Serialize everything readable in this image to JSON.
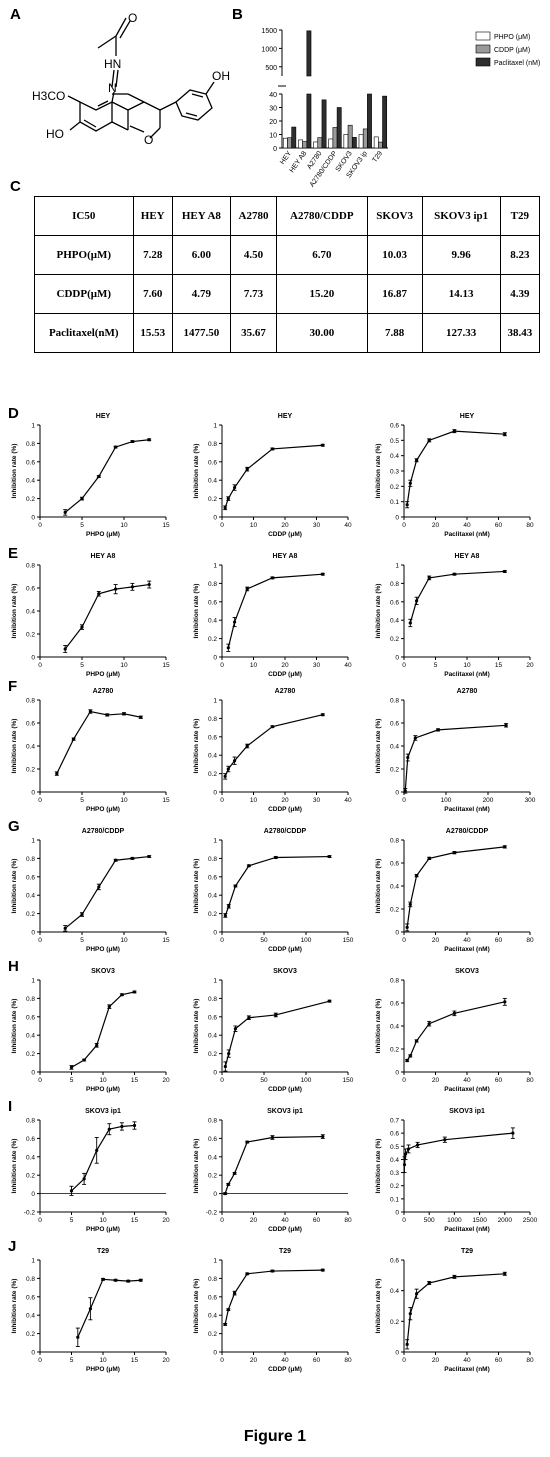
{
  "panel_labels": [
    "A",
    "B",
    "C",
    "D",
    "E",
    "F",
    "G",
    "H",
    "I",
    "J"
  ],
  "figure_title": "Figure 1",
  "structure": {
    "labels": {
      "carbonyl_o": "O",
      "hydrazone_nh": "HN",
      "hydrazone_n": "N",
      "phenol_oh": "OH",
      "methoxy": "H3CO",
      "hydroxy": "HO",
      "ring_o": "O"
    }
  },
  "table": {
    "headers": [
      "IC50",
      "HEY",
      "HEY A8",
      "A2780",
      "A2780/CDDP",
      "SKOV3",
      "SKOV3 ip1",
      "T29"
    ],
    "rows": [
      [
        "PHPO(μM)",
        "7.28",
        "6.00",
        "4.50",
        "6.70",
        "10.03",
        "9.96",
        "8.23"
      ],
      [
        "CDDP(μM)",
        "7.60",
        "4.79",
        "7.73",
        "15.20",
        "16.87",
        "14.13",
        "4.39"
      ],
      [
        "Paclitaxel(nM)",
        "15.53",
        "1477.50",
        "35.67",
        "30.00",
        "7.88",
        "127.33",
        "38.43"
      ]
    ]
  },
  "colors": {
    "phpo": "#ffffff",
    "cddp": "#9a9a9a",
    "paclitaxel": "#2e2e2e",
    "line": "#000000"
  },
  "chart_data": [
    {
      "type": "bar",
      "panel": "B",
      "categories": [
        "HEY",
        "HEY A8",
        "A2780",
        "A2780/CDDP",
        "SKOV3",
        "SKOV3 ip",
        "T29"
      ],
      "series": [
        {
          "name": "PHPO (μM)",
          "values": [
            7.28,
            6.0,
            4.5,
            6.7,
            10.03,
            9.96,
            8.23
          ]
        },
        {
          "name": "CDDP (μM)",
          "values": [
            7.6,
            4.79,
            7.73,
            15.2,
            16.87,
            14.13,
            4.39
          ]
        },
        {
          "name": "Paclitaxel (nM)",
          "values": [
            15.53,
            1477.5,
            35.67,
            30.0,
            7.88,
            127.33,
            38.43
          ]
        }
      ],
      "yticks_lower": [
        "0",
        "10",
        "20",
        "30",
        "40"
      ],
      "yticks_upper": [
        "500",
        "1000",
        "1500"
      ],
      "legend_position": "top-right",
      "axis_break": true
    },
    {
      "type": "line",
      "panel": "D",
      "title": "HEY",
      "xlabel": "PHPO (μM)",
      "ylabel": "Inhibition rate (%)",
      "xlim": [
        0,
        15
      ],
      "ylim": [
        0,
        1.0
      ],
      "xticks": [
        0,
        5,
        10,
        15
      ],
      "yticks": [
        0,
        0.2,
        0.4,
        0.6,
        0.8,
        1.0
      ],
      "x": [
        3,
        5,
        7,
        9,
        11,
        13
      ],
      "y": [
        0.05,
        0.2,
        0.44,
        0.76,
        0.82,
        0.84
      ],
      "err": [
        0.03,
        0.015,
        0.01,
        0.01,
        0.01,
        0.01
      ]
    },
    {
      "type": "line",
      "panel": "D",
      "title": "HEY",
      "xlabel": "CDDP (μM)",
      "ylabel": "Inhibition rate (%)",
      "xlim": [
        0,
        40
      ],
      "ylim": [
        0,
        1.0
      ],
      "xticks": [
        0,
        10,
        20,
        30,
        40
      ],
      "yticks": [
        0,
        0.2,
        0.4,
        0.6,
        0.8,
        1.0
      ],
      "x": [
        1,
        2,
        4,
        8,
        16,
        32
      ],
      "y": [
        0.1,
        0.2,
        0.32,
        0.52,
        0.74,
        0.78
      ],
      "err": [
        0.02,
        0.02,
        0.03,
        0.02,
        0.01,
        0.01
      ]
    },
    {
      "type": "line",
      "panel": "D",
      "title": "HEY",
      "xlabel": "Paclitaxel (nM)",
      "ylabel": "Inhibition rate (%)",
      "xlim": [
        0,
        80
      ],
      "ylim": [
        0,
        0.6
      ],
      "xticks": [
        0,
        20,
        40,
        60,
        80
      ],
      "yticks": [
        0,
        0.1,
        0.2,
        0.3,
        0.4,
        0.5,
        0.6
      ],
      "x": [
        2,
        4,
        8,
        16,
        32,
        64
      ],
      "y": [
        0.08,
        0.22,
        0.37,
        0.5,
        0.56,
        0.54
      ],
      "err": [
        0.02,
        0.02,
        0.01,
        0.01,
        0.01,
        0.01
      ]
    },
    {
      "type": "line",
      "panel": "E",
      "title": "HEY A8",
      "xlabel": "PHPO (μM)",
      "ylabel": "Inhibition rate (%)",
      "xlim": [
        0,
        15
      ],
      "ylim": [
        0,
        0.8
      ],
      "xticks": [
        0,
        5,
        10,
        15
      ],
      "yticks": [
        0,
        0.2,
        0.4,
        0.6,
        0.8
      ],
      "x": [
        3,
        5,
        7,
        9,
        11,
        13
      ],
      "y": [
        0.07,
        0.26,
        0.55,
        0.59,
        0.61,
        0.63
      ],
      "err": [
        0.03,
        0.02,
        0.02,
        0.04,
        0.03,
        0.03
      ]
    },
    {
      "type": "line",
      "panel": "E",
      "title": "HEY A8",
      "xlabel": "CDDP (μM)",
      "ylabel": "Inhibition rate (%)",
      "xlim": [
        0,
        40
      ],
      "ylim": [
        0,
        1.0
      ],
      "xticks": [
        0,
        10,
        20,
        30,
        40
      ],
      "yticks": [
        0,
        0.2,
        0.4,
        0.6,
        0.8,
        1.0
      ],
      "x": [
        2,
        4,
        8,
        16,
        32
      ],
      "y": [
        0.1,
        0.38,
        0.74,
        0.86,
        0.9
      ],
      "err": [
        0.04,
        0.05,
        0.02,
        0.01,
        0.01
      ]
    },
    {
      "type": "line",
      "panel": "E",
      "title": "HEY A8",
      "xlabel": "Paclitaxel (nM)",
      "ylabel": "Inhibition rate (%)",
      "xlim": [
        0,
        20
      ],
      "ylim": [
        0,
        1.0
      ],
      "xticks": [
        0,
        5,
        10,
        15,
        20
      ],
      "yticks": [
        0,
        0.2,
        0.4,
        0.6,
        0.8,
        1.0
      ],
      "x": [
        1,
        2,
        4,
        8,
        16
      ],
      "y": [
        0.37,
        0.61,
        0.86,
        0.9,
        0.93
      ],
      "err": [
        0.04,
        0.04,
        0.02,
        0.01,
        0.01
      ]
    },
    {
      "type": "line",
      "panel": "F",
      "title": "A2780",
      "xlabel": "PHPO (μM)",
      "ylabel": "Inhibition rate (%)",
      "xlim": [
        0,
        15
      ],
      "ylim": [
        0,
        0.8
      ],
      "xticks": [
        0,
        5,
        10,
        15
      ],
      "yticks": [
        0,
        0.2,
        0.4,
        0.6,
        0.8
      ],
      "x": [
        2,
        4,
        6,
        8,
        10,
        12
      ],
      "y": [
        0.16,
        0.46,
        0.7,
        0.67,
        0.68,
        0.65
      ],
      "err": [
        0.015,
        0.01,
        0.015,
        0.01,
        0.01,
        0.01
      ]
    },
    {
      "type": "line",
      "panel": "F",
      "title": "A2780",
      "xlabel": "CDDP (μM)",
      "ylabel": "Inhibition rate (%)",
      "xlim": [
        0,
        40
      ],
      "ylim": [
        0,
        1.0
      ],
      "xticks": [
        0,
        10,
        20,
        30,
        40
      ],
      "yticks": [
        0,
        0.2,
        0.4,
        0.6,
        0.8,
        1.0
      ],
      "x": [
        1,
        2,
        4,
        8,
        16,
        32
      ],
      "y": [
        0.17,
        0.25,
        0.34,
        0.5,
        0.71,
        0.84
      ],
      "err": [
        0.03,
        0.03,
        0.04,
        0.02,
        0.01,
        0.01
      ]
    },
    {
      "type": "line",
      "panel": "F",
      "title": "A2780",
      "xlabel": "Paclitaxel (nM)",
      "ylabel": "Inhibition rate (%)",
      "xlim": [
        0,
        300
      ],
      "ylim": [
        0,
        0.8
      ],
      "xticks": [
        0,
        100,
        200,
        300
      ],
      "yticks": [
        0,
        0.2,
        0.4,
        0.6,
        0.8
      ],
      "x": [
        3,
        9,
        27,
        81,
        243
      ],
      "y": [
        0.01,
        0.3,
        0.47,
        0.54,
        0.58
      ],
      "err": [
        0.02,
        0.03,
        0.02,
        0.01,
        0.015
      ]
    },
    {
      "type": "line",
      "panel": "G",
      "title": "A2780/CDDP",
      "xlabel": "PHPO (μM)",
      "ylabel": "Inhibition rate (%)",
      "xlim": [
        0,
        15
      ],
      "ylim": [
        0,
        1.0
      ],
      "xticks": [
        0,
        5,
        10,
        15
      ],
      "yticks": [
        0,
        0.2,
        0.4,
        0.6,
        0.8,
        1.0
      ],
      "x": [
        3,
        5,
        7,
        9,
        11,
        13
      ],
      "y": [
        0.04,
        0.19,
        0.49,
        0.78,
        0.8,
        0.82
      ],
      "err": [
        0.03,
        0.02,
        0.03,
        0.01,
        0.01,
        0.01
      ]
    },
    {
      "type": "line",
      "panel": "G",
      "title": "A2780/CDDP",
      "xlabel": "CDDP (μM)",
      "ylabel": "Inhibition rate (%)",
      "xlim": [
        0,
        150
      ],
      "ylim": [
        0,
        1.0
      ],
      "xticks": [
        0,
        50,
        100,
        150
      ],
      "yticks": [
        0,
        0.2,
        0.4,
        0.6,
        0.8,
        1.0
      ],
      "x": [
        4,
        8,
        16,
        32,
        64,
        128
      ],
      "y": [
        0.18,
        0.28,
        0.5,
        0.72,
        0.81,
        0.82
      ],
      "err": [
        0.02,
        0.02,
        0.01,
        0.01,
        0.01,
        0.01
      ]
    },
    {
      "type": "line",
      "panel": "G",
      "title": "A2780/CDDP",
      "xlabel": "Paclitaxel (nM)",
      "ylabel": "Inhibition rate (%)",
      "xlim": [
        0,
        80
      ],
      "ylim": [
        0,
        0.8
      ],
      "xticks": [
        0,
        20,
        40,
        60,
        80
      ],
      "yticks": [
        0,
        0.2,
        0.4,
        0.6,
        0.8
      ],
      "x": [
        2,
        4,
        8,
        16,
        32,
        64
      ],
      "y": [
        0.04,
        0.24,
        0.49,
        0.64,
        0.69,
        0.74
      ],
      "err": [
        0.03,
        0.02,
        0.01,
        0.01,
        0.01,
        0.01
      ]
    },
    {
      "type": "line",
      "panel": "H",
      "title": "SKOV3",
      "xlabel": "PHPO (μM)",
      "ylabel": "Inhibition rate (%)",
      "xlim": [
        0,
        20
      ],
      "ylim": [
        0,
        1.0
      ],
      "xticks": [
        0,
        5,
        10,
        15,
        20
      ],
      "yticks": [
        0,
        0.2,
        0.4,
        0.6,
        0.8,
        1.0
      ],
      "x": [
        5,
        7,
        9,
        11,
        13,
        15
      ],
      "y": [
        0.05,
        0.13,
        0.29,
        0.71,
        0.84,
        0.87
      ],
      "err": [
        0.02,
        0.01,
        0.02,
        0.02,
        0.01,
        0.01
      ]
    },
    {
      "type": "line",
      "panel": "H",
      "title": "SKOV3",
      "xlabel": "CDDP (μM)",
      "ylabel": "Inhibition rate (%)",
      "xlim": [
        0,
        150
      ],
      "ylim": [
        0,
        1.0
      ],
      "xticks": [
        0,
        50,
        100,
        150
      ],
      "yticks": [
        0,
        0.2,
        0.4,
        0.6,
        0.8,
        1.0
      ],
      "x": [
        4,
        8,
        16,
        32,
        64,
        128
      ],
      "y": [
        0.06,
        0.2,
        0.47,
        0.59,
        0.62,
        0.77
      ],
      "err": [
        0.05,
        0.04,
        0.03,
        0.02,
        0.02,
        0.01
      ]
    },
    {
      "type": "line",
      "panel": "H",
      "title": "SKOV3",
      "xlabel": "Paclitaxel (nM)",
      "ylabel": "Inhibition rate (%)",
      "xlim": [
        0,
        80
      ],
      "ylim": [
        0,
        0.8
      ],
      "xticks": [
        0,
        20,
        40,
        60,
        80
      ],
      "yticks": [
        0,
        0.2,
        0.4,
        0.6,
        0.8
      ],
      "x": [
        2,
        4,
        8,
        16,
        32,
        64
      ],
      "y": [
        0.1,
        0.14,
        0.27,
        0.42,
        0.51,
        0.61
      ],
      "err": [
        0.01,
        0.01,
        0.01,
        0.02,
        0.02,
        0.03
      ]
    },
    {
      "type": "line",
      "panel": "I",
      "title": "SKOV3 ip1",
      "xlabel": "PHPO (μM)",
      "ylabel": "Inhibition rate (%)",
      "xlim": [
        0,
        20
      ],
      "ylim": [
        -0.2,
        0.8
      ],
      "xticks": [
        0,
        5,
        10,
        15,
        20
      ],
      "yticks": [
        -0.2,
        0,
        0.2,
        0.4,
        0.6,
        0.8
      ],
      "x": [
        5,
        7,
        9,
        11,
        13,
        15
      ],
      "y": [
        0.03,
        0.16,
        0.47,
        0.7,
        0.73,
        0.74
      ],
      "err": [
        0.05,
        0.06,
        0.14,
        0.06,
        0.04,
        0.04
      ]
    },
    {
      "type": "line",
      "panel": "I",
      "title": "SKOV3 ip1",
      "xlabel": "CDDP (μM)",
      "ylabel": "Inhibition rate (%)",
      "xlim": [
        0,
        80
      ],
      "ylim": [
        -0.2,
        0.8
      ],
      "xticks": [
        0,
        20,
        40,
        60,
        80
      ],
      "yticks": [
        -0.2,
        0,
        0.2,
        0.4,
        0.6,
        0.8
      ],
      "x": [
        2,
        4,
        8,
        16,
        32,
        64
      ],
      "y": [
        0.0,
        0.1,
        0.22,
        0.56,
        0.61,
        0.62
      ],
      "err": [
        0.01,
        0.01,
        0.01,
        0.01,
        0.02,
        0.02
      ]
    },
    {
      "type": "line",
      "panel": "I",
      "title": "SKOV3 ip1",
      "xlabel": "Paclitaxel (nM)",
      "ylabel": "Inhibition rate (%)",
      "xlim": [
        0,
        2500
      ],
      "ylim": [
        0,
        0.7
      ],
      "xticks": [
        0,
        500,
        1000,
        1500,
        2000,
        2500
      ],
      "yticks": [
        0,
        0.1,
        0.2,
        0.3,
        0.4,
        0.5,
        0.6,
        0.7
      ],
      "x": [
        10,
        30,
        90,
        270,
        810,
        2160
      ],
      "y": [
        0.36,
        0.44,
        0.48,
        0.51,
        0.55,
        0.6
      ],
      "err": [
        0.06,
        0.04,
        0.03,
        0.02,
        0.02,
        0.04
      ]
    },
    {
      "type": "line",
      "panel": "J",
      "title": "T29",
      "xlabel": "PHPO (μM)",
      "ylabel": "Inhibition rate (%)",
      "xlim": [
        0,
        20
      ],
      "ylim": [
        0,
        1.0
      ],
      "xticks": [
        0,
        5,
        10,
        15,
        20
      ],
      "yticks": [
        0,
        0.2,
        0.4,
        0.6,
        0.8,
        1.0
      ],
      "x": [
        6,
        8,
        10,
        12,
        14,
        16
      ],
      "y": [
        0.16,
        0.47,
        0.79,
        0.78,
        0.77,
        0.78
      ],
      "err": [
        0.1,
        0.12,
        0.01,
        0.01,
        0.01,
        0.01
      ]
    },
    {
      "type": "line",
      "panel": "J",
      "title": "T29",
      "xlabel": "CDDP (μM)",
      "ylabel": "Inhibition rate (%)",
      "xlim": [
        0,
        80
      ],
      "ylim": [
        0,
        1.0
      ],
      "xticks": [
        0,
        20,
        40,
        60,
        80
      ],
      "yticks": [
        0,
        0.2,
        0.4,
        0.6,
        0.8,
        1.0
      ],
      "x": [
        2,
        4,
        8,
        16,
        32,
        64
      ],
      "y": [
        0.3,
        0.46,
        0.64,
        0.85,
        0.88,
        0.89
      ],
      "err": [
        0.01,
        0.01,
        0.02,
        0.01,
        0.01,
        0.01
      ]
    },
    {
      "type": "line",
      "panel": "J",
      "title": "T29",
      "xlabel": "Paclitaxel (nM)",
      "ylabel": "Inhibition rate (%)",
      "xlim": [
        0,
        80
      ],
      "ylim": [
        0,
        0.6
      ],
      "xticks": [
        0,
        20,
        40,
        60,
        80
      ],
      "yticks": [
        0,
        0.2,
        0.4,
        0.6
      ],
      "x": [
        2,
        4,
        8,
        16,
        32,
        64
      ],
      "y": [
        0.05,
        0.25,
        0.38,
        0.45,
        0.49,
        0.51
      ],
      "err": [
        0.03,
        0.04,
        0.03,
        0.01,
        0.01,
        0.01
      ]
    }
  ]
}
